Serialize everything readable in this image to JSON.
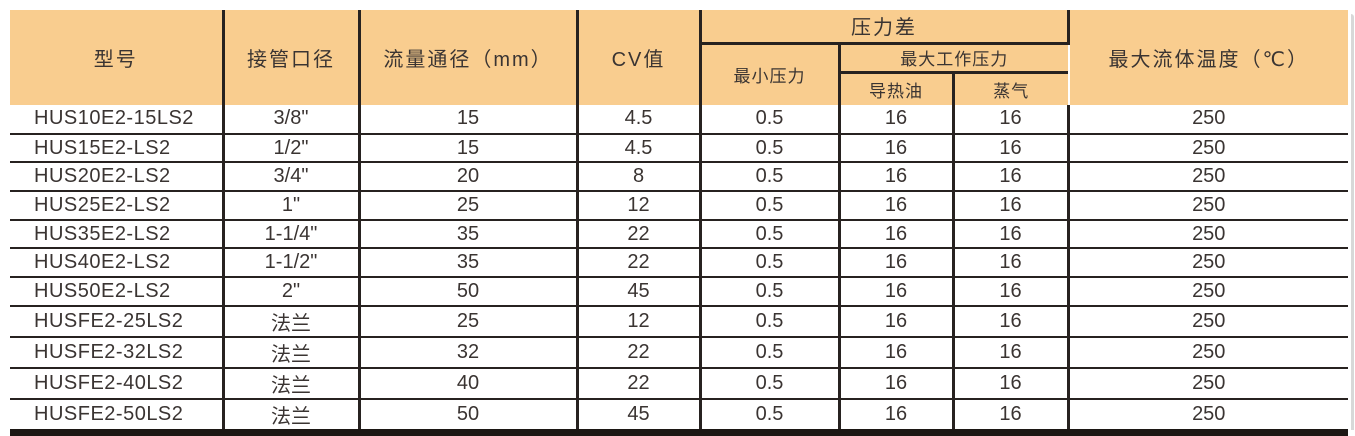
{
  "colors": {
    "header_bg": "#f9cd8f",
    "line": "#272220",
    "line_heavy": "#1c1714",
    "text": "#3a3432",
    "page_bg": "#ffffff"
  },
  "table": {
    "header": {
      "model": "型号",
      "pipe_bore": "接管口径",
      "flow_diameter": "流量通径（mm）",
      "cv_value": "CV值",
      "pressure_diff": "压力差",
      "min_pressure": "最小压力",
      "max_working_pressure": "最大工作压力",
      "thermal_oil": "导热油",
      "steam": "蒸气",
      "max_fluid_temp": "最大流体温度（℃）"
    },
    "column_keys": [
      "model",
      "pipe-bore",
      "flow-diameter",
      "cv-value",
      "min-pressure",
      "thermal-oil",
      "steam",
      "max-fluid-temp"
    ],
    "rows": [
      [
        "HUS10E2-15LS2",
        "3/8\"",
        "15",
        "4.5",
        "0.5",
        "16",
        "16",
        "250"
      ],
      [
        "HUS15E2-LS2",
        "1/2\"",
        "15",
        "4.5",
        "0.5",
        "16",
        "16",
        "250"
      ],
      [
        "HUS20E2-LS2",
        "3/4\"",
        "20",
        "8",
        "0.5",
        "16",
        "16",
        "250"
      ],
      [
        "HUS25E2-LS2",
        "1\"",
        "25",
        "12",
        "0.5",
        "16",
        "16",
        "250"
      ],
      [
        "HUS35E2-LS2",
        "1-1/4\"",
        "35",
        "22",
        "0.5",
        "16",
        "16",
        "250"
      ],
      [
        "HUS40E2-LS2",
        "1-1/2\"",
        "35",
        "22",
        "0.5",
        "16",
        "16",
        "250"
      ],
      [
        "HUS50E2-LS2",
        "2\"",
        "50",
        "45",
        "0.5",
        "16",
        "16",
        "250"
      ],
      [
        "HUSFE2-25LS2",
        "法兰",
        "25",
        "12",
        "0.5",
        "16",
        "16",
        "250"
      ],
      [
        "HUSFE2-32LS2",
        "法兰",
        "32",
        "22",
        "0.5",
        "16",
        "16",
        "250"
      ],
      [
        "HUSFE2-40LS2",
        "法兰",
        "40",
        "22",
        "0.5",
        "16",
        "16",
        "250"
      ],
      [
        "HUSFE2-50LS2",
        "法兰",
        "50",
        "45",
        "0.5",
        "16",
        "16",
        "250"
      ]
    ]
  }
}
